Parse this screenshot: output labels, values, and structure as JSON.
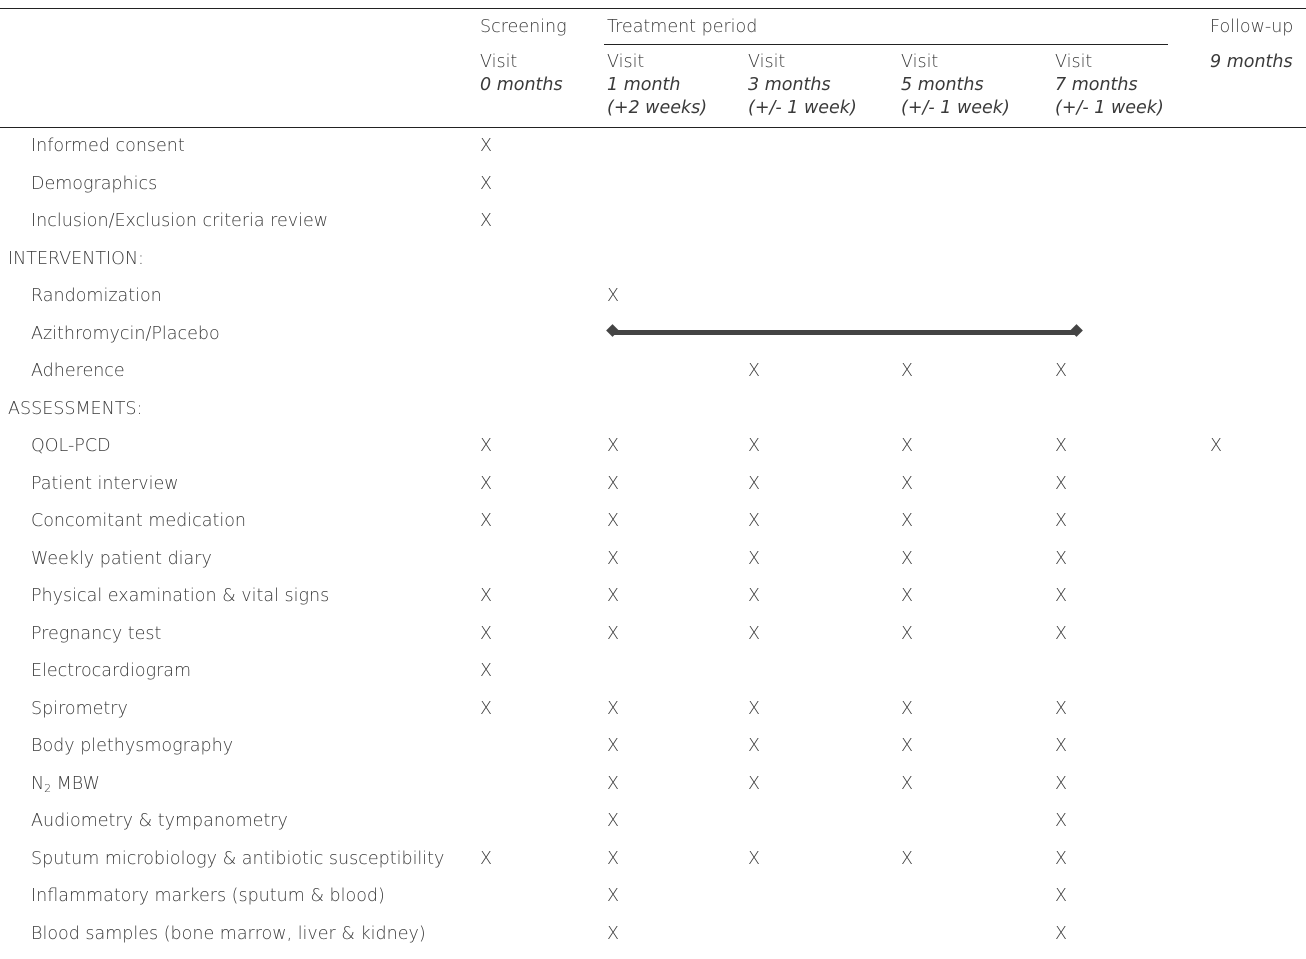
{
  "header": {
    "screening": "Screening",
    "treatment_period": "Treatment period",
    "follow_up": "Follow-up",
    "visits": [
      {
        "title": "Visit",
        "time": "0 months",
        "window": ""
      },
      {
        "title": "Visit",
        "time": "1 month",
        "window": "(+2 weeks)"
      },
      {
        "title": "Visit",
        "time": "3 months",
        "window": "(+/- 1 week)"
      },
      {
        "title": "Visit",
        "time": "5 months",
        "window": "(+/- 1 week)"
      },
      {
        "title": "Visit",
        "time": "7 months",
        "window": "(+/- 1 week)"
      },
      {
        "title": "",
        "time": "9 months",
        "window": ""
      }
    ]
  },
  "mark": "X",
  "rows": [
    {
      "label": "Informed consent",
      "type": "item",
      "marks": [
        1,
        0,
        0,
        0,
        0,
        0
      ]
    },
    {
      "label": "Demographics",
      "type": "item",
      "marks": [
        1,
        0,
        0,
        0,
        0,
        0
      ]
    },
    {
      "label": "Inclusion/Exclusion criteria review",
      "type": "item",
      "marks": [
        1,
        0,
        0,
        0,
        0,
        0
      ]
    },
    {
      "label": "INTERVENTION:",
      "type": "section",
      "marks": [
        0,
        0,
        0,
        0,
        0,
        0
      ]
    },
    {
      "label": "Randomization",
      "type": "item",
      "marks": [
        0,
        1,
        0,
        0,
        0,
        0
      ]
    },
    {
      "label": "Azithromycin/Placebo",
      "type": "item",
      "marks": [
        0,
        0,
        0,
        0,
        0,
        0
      ]
    },
    {
      "label": "Adherence",
      "type": "item",
      "marks": [
        0,
        0,
        1,
        1,
        1,
        0
      ]
    },
    {
      "label": "ASSESSMENTS:",
      "type": "section",
      "marks": [
        0,
        0,
        0,
        0,
        0,
        0
      ]
    },
    {
      "label": "QOL-PCD",
      "type": "item",
      "marks": [
        1,
        1,
        1,
        1,
        1,
        1
      ]
    },
    {
      "label": "Patient interview",
      "type": "item",
      "marks": [
        1,
        1,
        1,
        1,
        1,
        0
      ]
    },
    {
      "label": "Concomitant medication",
      "type": "item",
      "marks": [
        1,
        1,
        1,
        1,
        1,
        0
      ]
    },
    {
      "label": "Weekly patient diary",
      "type": "item",
      "marks": [
        0,
        1,
        1,
        1,
        1,
        0
      ]
    },
    {
      "label": "Physical examination & vital signs",
      "type": "item",
      "marks": [
        1,
        1,
        1,
        1,
        1,
        0
      ]
    },
    {
      "label": "Pregnancy test",
      "type": "item",
      "marks": [
        1,
        1,
        1,
        1,
        1,
        0
      ]
    },
    {
      "label": "Electrocardiogram",
      "type": "item",
      "marks": [
        1,
        0,
        0,
        0,
        0,
        0
      ]
    },
    {
      "label": "Spirometry",
      "type": "item",
      "marks": [
        1,
        1,
        1,
        1,
        1,
        0
      ]
    },
    {
      "label": "Body plethysmography",
      "type": "item",
      "marks": [
        0,
        1,
        1,
        1,
        1,
        0
      ]
    },
    {
      "label": "N",
      "label_sub": "2",
      "label_rest": " MBW",
      "type": "item",
      "marks": [
        0,
        1,
        1,
        1,
        1,
        0
      ]
    },
    {
      "label": "Audiometry & tympanometry",
      "type": "item",
      "marks": [
        0,
        1,
        0,
        0,
        1,
        0
      ]
    },
    {
      "label": "Sputum microbiology & antibiotic susceptibility",
      "type": "item",
      "marks": [
        1,
        1,
        1,
        1,
        1,
        0
      ]
    },
    {
      "label": "Inflammatory markers (sputum & blood)",
      "type": "item",
      "marks": [
        0,
        1,
        0,
        0,
        1,
        0
      ]
    },
    {
      "label": "Blood samples (bone marrow, liver & kidney)",
      "type": "item",
      "marks": [
        0,
        1,
        0,
        0,
        1,
        0
      ]
    }
  ]
}
